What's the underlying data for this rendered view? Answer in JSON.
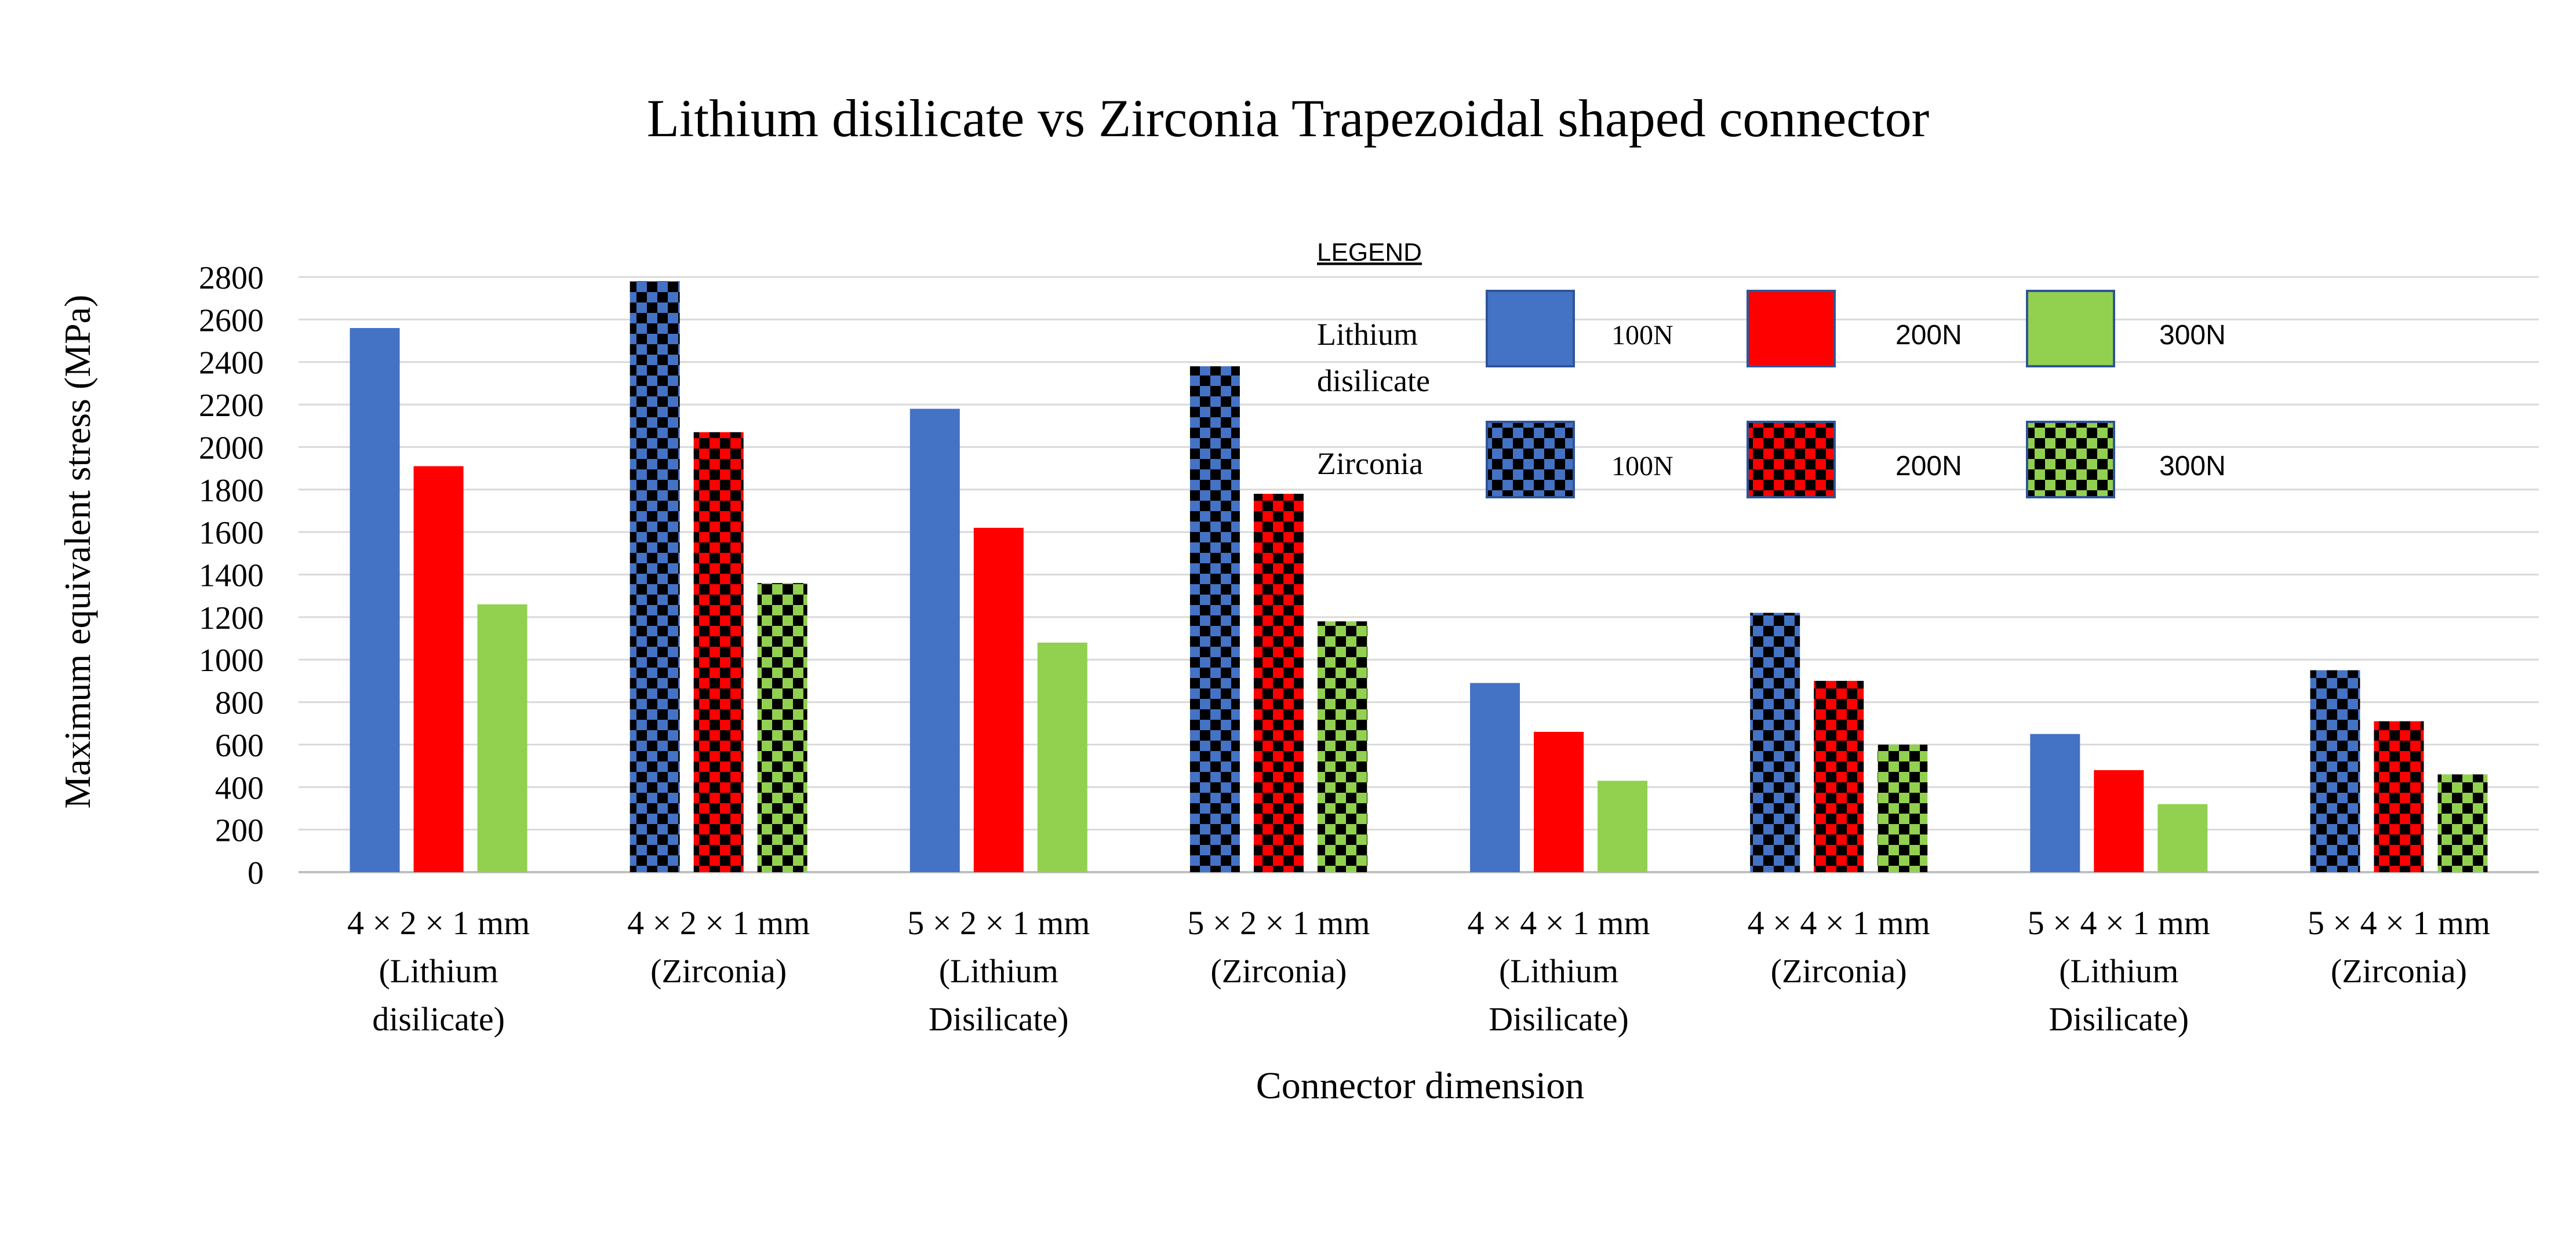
{
  "chart_data": {
    "type": "bar",
    "title": "Lithium disilicate vs Zirconia Trapezoidal shaped connector",
    "xlabel": "Connector dimension",
    "ylabel": "Maximum equivalent stress (MPa)",
    "ylim": [
      0,
      2800
    ],
    "yticks": [
      0,
      200,
      400,
      600,
      800,
      1000,
      1200,
      1400,
      1600,
      1800,
      2000,
      2200,
      2400,
      2600,
      2800
    ],
    "grid": true,
    "categories": [
      [
        "4 × 2 × 1 mm",
        "(Lithium",
        "disilicate)"
      ],
      [
        "4 × 2 × 1 mm",
        "(Zirconia)"
      ],
      [
        "5 × 2 × 1 mm",
        "(Lithium",
        "Disilicate)"
      ],
      [
        "5 × 2 × 1 mm",
        "(Zirconia)"
      ],
      [
        "4 × 4 × 1 mm",
        "(Lithium",
        "Disilicate)"
      ],
      [
        "4 × 4 × 1 mm",
        "(Zirconia)"
      ],
      [
        "5 × 4 × 1 mm",
        "(Lithium",
        "Disilicate)"
      ],
      [
        "5 × 4 × 1 mm",
        "(Zirconia)"
      ]
    ],
    "material_pattern": [
      "solid",
      "checker",
      "solid",
      "checker",
      "solid",
      "checker",
      "solid",
      "checker"
    ],
    "series": [
      {
        "name": "100N",
        "color": "#4472C4",
        "values": [
          2560,
          2780,
          2180,
          2380,
          890,
          1220,
          650,
          950
        ]
      },
      {
        "name": "200N",
        "color": "#FF0000",
        "values": [
          1910,
          2070,
          1620,
          1780,
          660,
          900,
          480,
          710
        ]
      },
      {
        "name": "300N",
        "color": "#92D050",
        "values": [
          1260,
          1360,
          1080,
          1180,
          430,
          600,
          320,
          460
        ]
      }
    ],
    "legend": {
      "heading": "LEGEND",
      "placement": "top-right",
      "rows": [
        {
          "label": [
            "Lithium",
            "disilicate"
          ],
          "pattern": "solid",
          "labels": [
            "100N",
            "200N",
            "300N"
          ]
        },
        {
          "label": [
            "Zirconia"
          ],
          "pattern": "checker",
          "labels": [
            "100N",
            "200N",
            "300N"
          ]
        }
      ]
    }
  }
}
